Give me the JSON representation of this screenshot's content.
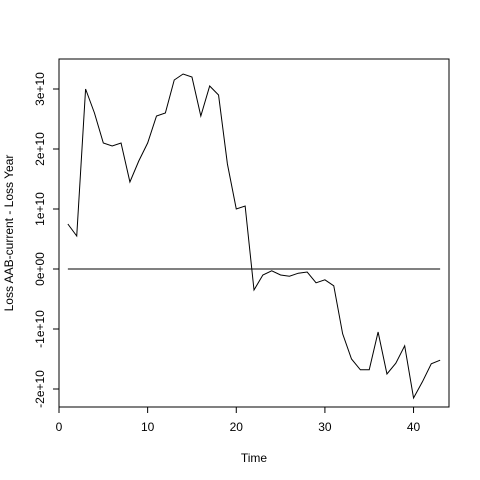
{
  "chart_data": {
    "type": "line",
    "title": "",
    "xlabel": "Time",
    "ylabel": "Loss AAB-current - Loss Year",
    "xlim": [
      0,
      44
    ],
    "ylim": [
      -23000000000.0,
      35000000000.0
    ],
    "x_ticks": [
      0,
      10,
      20,
      30,
      40
    ],
    "x_tick_labels": [
      "0",
      "10",
      "20",
      "30",
      "40"
    ],
    "y_ticks": [
      -20000000000.0,
      -10000000000.0,
      0,
      10000000000.0,
      20000000000.0,
      30000000000.0
    ],
    "y_tick_labels": [
      "-2e+10",
      "-1e+10",
      "0e+00",
      "1e+10",
      "2e+10",
      "3e+10"
    ],
    "reference_line": {
      "y": 0,
      "x_from": 1,
      "x_to": 43
    },
    "series": [
      {
        "x": [
          1,
          2,
          3,
          4,
          5,
          6,
          7,
          8,
          9,
          10,
          11,
          12,
          13,
          14,
          15,
          16,
          17,
          18,
          19,
          20,
          21,
          22,
          23,
          24,
          25,
          26,
          27,
          28,
          29,
          30,
          31,
          32,
          33,
          34,
          35,
          36,
          37,
          38,
          39,
          40,
          41,
          42,
          43
        ],
        "values": [
          7500000000.0,
          5500000000.0,
          30000000000.0,
          26000000000.0,
          21000000000.0,
          20500000000.0,
          21000000000.0,
          14500000000.0,
          18000000000.0,
          21000000000.0,
          25500000000.0,
          26000000000.0,
          31500000000.0,
          32500000000.0,
          32000000000.0,
          25500000000.0,
          30500000000.0,
          29000000000.0,
          17500000000.0,
          10000000000.0,
          10500000000.0,
          -3500000000.0,
          -1000000000.0,
          -300000000.0,
          -1000000000.0,
          -1200000000.0,
          -700000000.0,
          -500000000.0,
          -2300000000.0,
          -1800000000.0,
          -2800000000.0,
          -10800000000.0,
          -15000000000.0,
          -16800000000.0,
          -16800000000.0,
          -10500000000.0,
          -17500000000.0,
          -15700000000.0,
          -12800000000.0,
          -21500000000.0,
          -18800000000.0,
          -15800000000.0,
          -15200000000.0
        ]
      }
    ]
  }
}
